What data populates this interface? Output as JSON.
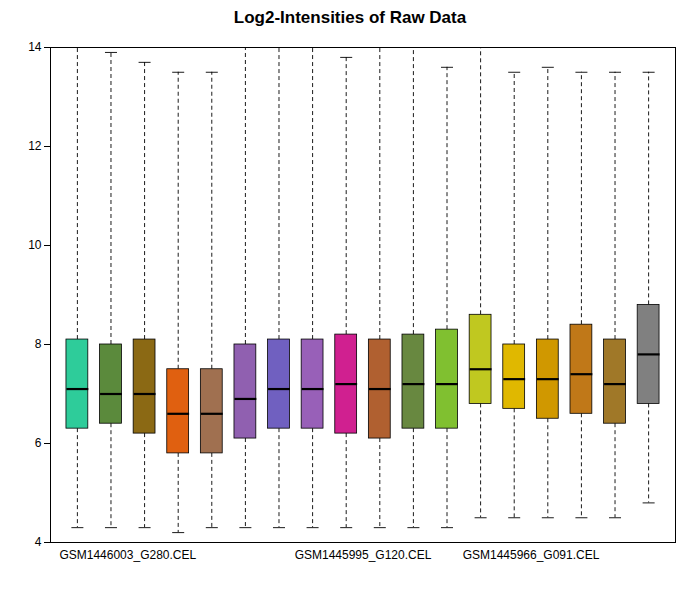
{
  "chart_data": {
    "type": "box",
    "title": "Log2-Intensities of Raw Data",
    "x": [
      1,
      2,
      3,
      4,
      5,
      6,
      7,
      8,
      9,
      10,
      11,
      12,
      13,
      14,
      15,
      16,
      17,
      18
    ],
    "xlim": [
      0.2,
      18.8
    ],
    "xticks": [
      {
        "value": 2.5,
        "label": "GSM1446003_G280.CEL"
      },
      {
        "value": 9.5,
        "label": "GSM1445995_G120.CEL"
      },
      {
        "value": 14.5,
        "label": "GSM1445966_G091.CEL"
      }
    ],
    "ylim": [
      4,
      14
    ],
    "yticks": [
      4,
      6,
      8,
      10,
      12,
      14
    ],
    "grid": false,
    "median": [
      7.1,
      7.0,
      7.0,
      6.6,
      6.6,
      6.9,
      7.1,
      7.1,
      7.2,
      7.1,
      7.2,
      7.2,
      7.5,
      7.3,
      7.3,
      7.4,
      7.2,
      7.8
    ],
    "q1": [
      6.3,
      6.4,
      6.2,
      5.8,
      5.8,
      6.1,
      6.3,
      6.3,
      6.2,
      6.1,
      6.3,
      6.3,
      6.8,
      6.7,
      6.5,
      6.6,
      6.4,
      6.8
    ],
    "q3": [
      8.1,
      8.0,
      8.1,
      7.5,
      7.5,
      8.0,
      8.1,
      8.1,
      8.2,
      8.1,
      8.2,
      8.3,
      8.6,
      8.0,
      8.1,
      8.4,
      8.1,
      8.8
    ],
    "whislo": [
      4.3,
      4.3,
      4.3,
      4.2,
      4.3,
      4.3,
      4.3,
      4.3,
      4.3,
      4.3,
      4.3,
      4.3,
      4.5,
      4.5,
      4.5,
      4.5,
      4.5,
      4.8
    ],
    "whishi": [
      14.0,
      13.9,
      13.7,
      13.5,
      13.5,
      14.0,
      14.0,
      14.0,
      13.8,
      14.0,
      14.0,
      13.6,
      14.0,
      13.5,
      13.6,
      13.5,
      13.5,
      13.5
    ],
    "colors": [
      "#2ECC9A",
      "#5B8A3C",
      "#8B6914",
      "#E06010",
      "#A07050",
      "#9060B0",
      "#7060C0",
      "#9860B8",
      "#D02090",
      "#B06030",
      "#688840",
      "#80C030",
      "#C0C820",
      "#E0B800",
      "#D09800",
      "#C07818",
      "#A07828",
      "#808080"
    ]
  }
}
